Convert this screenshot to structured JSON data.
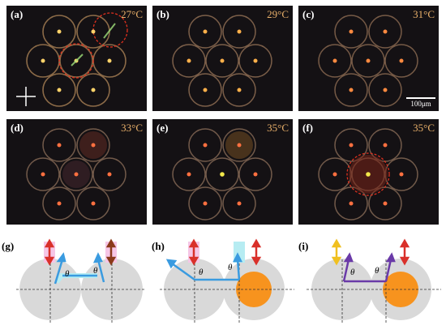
{
  "figure": {
    "photos": [
      {
        "label": "(a)",
        "temp": "27°C"
      },
      {
        "label": "(b)",
        "temp": "29°C"
      },
      {
        "label": "(c)",
        "temp": "31°C"
      },
      {
        "label": "(d)",
        "temp": "33°C"
      },
      {
        "label": "(e)",
        "temp": "35°C"
      },
      {
        "label": "(f)",
        "temp": "35°C"
      }
    ],
    "scale_bar": "100μm",
    "diagrams": [
      {
        "label": "(g)",
        "theta_left": "θ",
        "theta_right": "θ"
      },
      {
        "label": "(h)",
        "theta_left": "θ",
        "theta_right": "θ"
      },
      {
        "label": "(i)",
        "theta_left": "θ",
        "theta_right": "θ"
      }
    ],
    "colors": {
      "red_arrow": "#d9302a",
      "brown_arrow": "#8b3a1a",
      "yellow_arrow": "#f0c020",
      "blue_arrow": "#3a9be0",
      "purple_arrow": "#6a3aa8",
      "orange_disk": "#f7931e",
      "gray_disk": "#d9d9d9",
      "pink_band": "#f6c6e6",
      "cyan_band": "#b6ecf2"
    }
  }
}
